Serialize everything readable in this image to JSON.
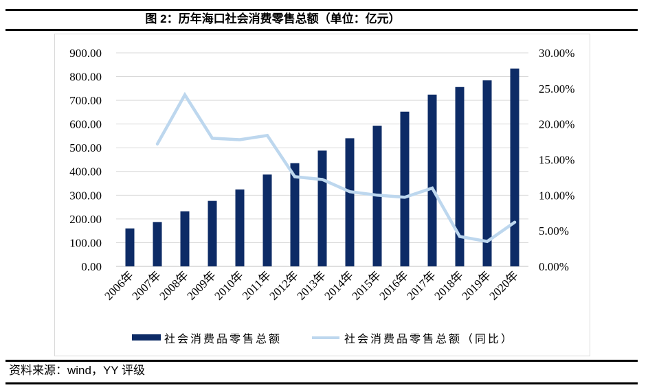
{
  "page": {
    "title": "图 2：历年海口社会消费零售总额（单位：亿元）",
    "source": "资料来源：wind，YY 评级"
  },
  "colors": {
    "bar": "#0d2b66",
    "line": "#bdd7ee",
    "gridline": "#d9d9d9",
    "axis_line": "#bfbfbf",
    "frame_border": "#d9d9d9",
    "text": "#000000"
  },
  "chart_data": {
    "type": "bar",
    "subtype": "bar-with-line-overlay",
    "title": "图 2：历年海口社会消费零售总额（单位：亿元）",
    "categories": [
      "2006年",
      "2007年",
      "2008年",
      "2009年",
      "2010年",
      "2011年",
      "2012年",
      "2013年",
      "2014年",
      "2015年",
      "2016年",
      "2017年",
      "2018年",
      "2019年",
      "2020年"
    ],
    "series": [
      {
        "name": "社会消费品零售总额",
        "type": "bar",
        "axis": "left",
        "color": "#0d2b66",
        "values": [
          160,
          187,
          232,
          276,
          324,
          387,
          435,
          488,
          540,
          593,
          652,
          724,
          756,
          784,
          834
        ]
      },
      {
        "name": "社会消费品零售总额（同比）",
        "type": "line",
        "axis": "right",
        "color": "#bdd7ee",
        "values": [
          null,
          17.2,
          24.1,
          18.0,
          17.8,
          18.4,
          12.6,
          12.2,
          10.5,
          10.0,
          9.7,
          11.0,
          4.2,
          3.5,
          6.2
        ]
      }
    ],
    "left_axis": {
      "min": 0,
      "max": 900,
      "step": 100,
      "ticks": [
        "0.00",
        "100.00",
        "200.00",
        "300.00",
        "400.00",
        "500.00",
        "600.00",
        "700.00",
        "800.00",
        "900.00"
      ]
    },
    "right_axis": {
      "min": 0,
      "max": 30,
      "step": 5,
      "ticks": [
        "0.00%",
        "5.00%",
        "10.00%",
        "15.00%",
        "20.00%",
        "25.00%",
        "30.00%"
      ]
    },
    "grid": true,
    "legend_position": "bottom",
    "unit": "亿元"
  }
}
